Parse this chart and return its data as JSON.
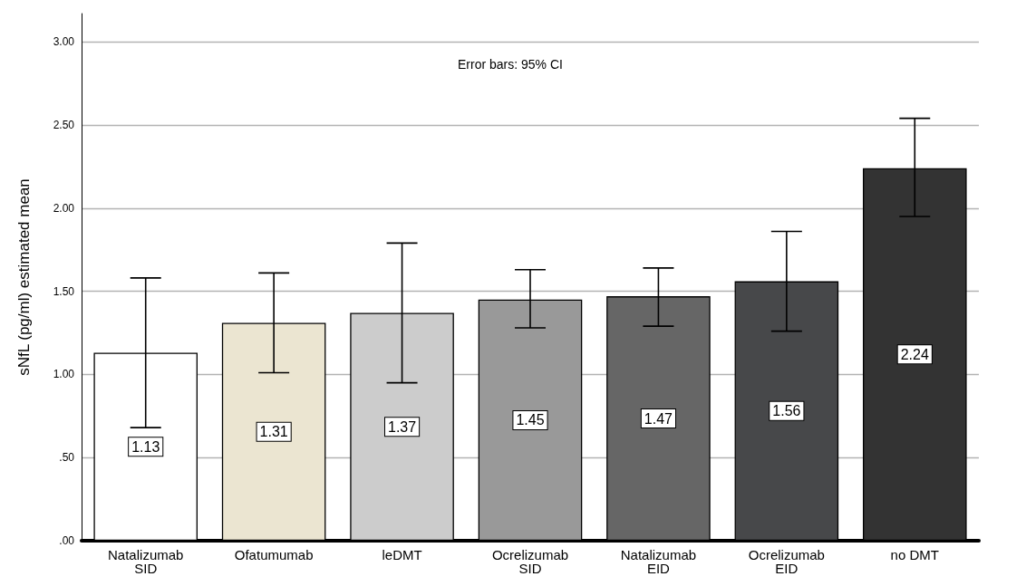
{
  "chart_data": {
    "type": "bar",
    "ylabel": "sNfL (pg/ml) estimated mean",
    "categories": [
      "Natalizumab\nSID",
      "Ofatumumab",
      "leDMT",
      "Ocrelizumab\nSID",
      "Natalizumab\nEID",
      "Ocrelizumab\nEID",
      "no DMT"
    ],
    "values": [
      1.13,
      1.31,
      1.37,
      1.45,
      1.47,
      1.56,
      2.24
    ],
    "colors": [
      "#ffffff",
      "#ebe5d1",
      "#cccccc",
      "#999999",
      "#666666",
      "#47484a",
      "#333333"
    ],
    "errors": [
      [
        0.68,
        1.58
      ],
      [
        1.01,
        1.61
      ],
      [
        0.95,
        1.79
      ],
      [
        1.28,
        1.63
      ],
      [
        1.29,
        1.64
      ],
      [
        1.26,
        1.86
      ],
      [
        1.95,
        2.54
      ]
    ],
    "data_labels": true,
    "ylim": [
      0,
      3.17
    ],
    "yticks": [
      {
        "value": 0,
        "label": ".00"
      },
      {
        "value": 0.5,
        "label": ".50"
      },
      {
        "value": 1,
        "label": "1.00"
      },
      {
        "value": 1.5,
        "label": "1.50"
      },
      {
        "value": 2,
        "label": "2.00"
      },
      {
        "value": 2.5,
        "label": "2.50"
      },
      {
        "value": 3,
        "label": "3.00"
      }
    ],
    "grid": "y",
    "annotations": [
      "Error bars: 95% CI"
    ]
  }
}
